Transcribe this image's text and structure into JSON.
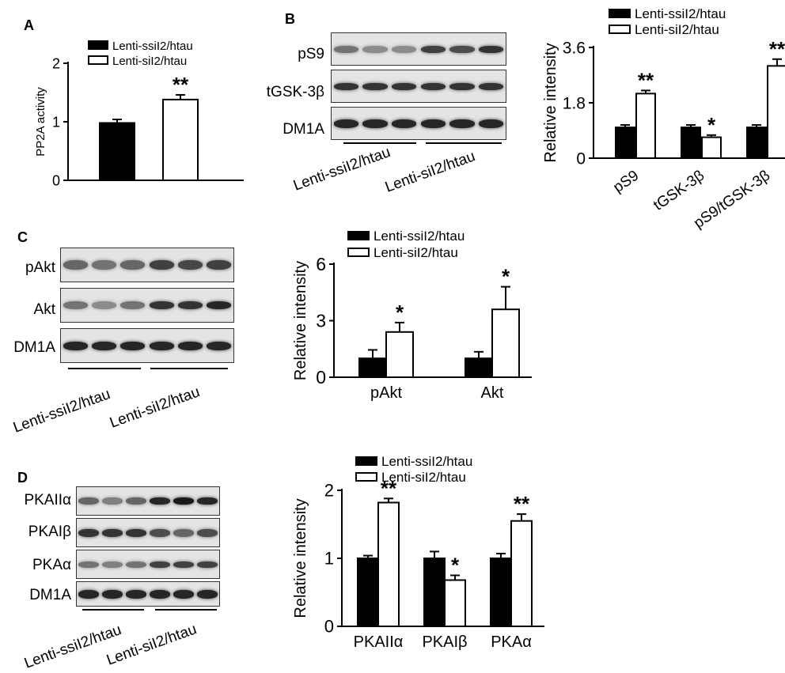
{
  "colors": {
    "series1": "#000000",
    "series2": "#ffffff",
    "axis": "#000000"
  },
  "panels": {
    "A": {
      "letter": "A",
      "chart": {
        "type": "bar",
        "ylabel": "PP2A activity",
        "categories": [
          ""
        ],
        "ylim": [
          0,
          2
        ],
        "yticks": [
          "0",
          "1",
          "2"
        ],
        "legend": [
          "Lenti-ssiI2/htau",
          "Lenti-siI2/htau"
        ],
        "series": [
          {
            "name": "Lenti-ssiI2/htau",
            "values": [
              0.98
            ],
            "errors": [
              0.06
            ],
            "sig": [
              ""
            ]
          },
          {
            "name": "Lenti-siI2/htau",
            "values": [
              1.38
            ],
            "errors": [
              0.08
            ],
            "sig": [
              "**"
            ]
          }
        ]
      }
    },
    "B": {
      "letter": "B",
      "blots": [
        "pS9",
        "tGSK-3β",
        "DM1A"
      ],
      "groups": [
        "Lenti-ssiI2/htau",
        "Lenti-siI2/htau"
      ],
      "chart": {
        "type": "bar",
        "ylabel": "Relative intensity",
        "categories": [
          "pS9",
          "tGSK-3β",
          "pS9/tGSK-3β"
        ],
        "ylim": [
          0,
          3.6
        ],
        "yticks": [
          "0",
          "1.8",
          "3.6"
        ],
        "legend": [
          "Lenti-ssiI2/htau",
          "Lenti-siI2/htau"
        ],
        "series": [
          {
            "name": "Lenti-ssiI2/htau",
            "values": [
              1.0,
              1.0,
              1.0
            ],
            "errors": [
              0.08,
              0.08,
              0.08
            ],
            "sig": [
              "",
              "",
              ""
            ]
          },
          {
            "name": "Lenti-siI2/htau",
            "values": [
              2.1,
              0.68,
              3.0
            ],
            "errors": [
              0.1,
              0.07,
              0.22
            ],
            "sig": [
              "**",
              "*",
              "**"
            ]
          }
        ]
      }
    },
    "C": {
      "letter": "C",
      "blots": [
        "pAkt",
        "Akt",
        "DM1A"
      ],
      "groups": [
        "Lenti-ssiI2/htau",
        "Lenti-siI2/htau"
      ],
      "chart": {
        "type": "bar",
        "ylabel": "Relative intensity",
        "categories": [
          "pAkt",
          "Akt"
        ],
        "ylim": [
          0,
          6
        ],
        "yticks": [
          "0",
          "3",
          "6"
        ],
        "legend": [
          "Lenti-ssiI2/htau",
          "Lenti-siI2/htau"
        ],
        "series": [
          {
            "name": "Lenti-ssiI2/htau",
            "values": [
              1.0,
              1.0
            ],
            "errors": [
              0.45,
              0.35
            ],
            "sig": [
              "",
              ""
            ]
          },
          {
            "name": "Lenti-siI2/htau",
            "values": [
              2.4,
              3.6
            ],
            "errors": [
              0.5,
              1.2
            ],
            "sig": [
              "*",
              "*"
            ]
          }
        ]
      }
    },
    "D": {
      "letter": "D",
      "blots": [
        "PKAIIα",
        "PKAIβ",
        "PKAα",
        "DM1A"
      ],
      "groups": [
        "Lenti-ssiI2/htau",
        "Lenti-siI2/htau"
      ],
      "chart": {
        "type": "bar",
        "ylabel": "Relative intensity",
        "categories": [
          "PKAIIα",
          "PKAIβ",
          "PKAα"
        ],
        "ylim": [
          0,
          2
        ],
        "yticks": [
          "0",
          "1",
          "2"
        ],
        "legend": [
          "Lenti-ssiI2/htau",
          "Lenti-siI2/htau"
        ],
        "series": [
          {
            "name": "Lenti-ssiI2/htau",
            "values": [
              1.0,
              1.0,
              1.0
            ],
            "errors": [
              0.04,
              0.1,
              0.07
            ],
            "sig": [
              "",
              "",
              ""
            ]
          },
          {
            "name": "Lenti-siI2/htau",
            "values": [
              1.82,
              0.68,
              1.55
            ],
            "errors": [
              0.06,
              0.07,
              0.1
            ],
            "sig": [
              "**",
              "*",
              "**"
            ]
          }
        ]
      }
    }
  },
  "chart_data": [
    {
      "type": "bar",
      "ylabel": "PP2A activity",
      "ylim": [
        0,
        2
      ],
      "categories": [
        ""
      ],
      "series": [
        {
          "name": "Lenti-ssiI2/htau",
          "values": [
            0.98
          ]
        },
        {
          "name": "Lenti-siI2/htau",
          "values": [
            1.38
          ]
        }
      ]
    },
    {
      "type": "bar",
      "ylabel": "Relative intensity",
      "ylim": [
        0,
        3.6
      ],
      "categories": [
        "pS9",
        "tGSK-3β",
        "pS9/tGSK-3β"
      ],
      "series": [
        {
          "name": "Lenti-ssiI2/htau",
          "values": [
            1.0,
            1.0,
            1.0
          ]
        },
        {
          "name": "Lenti-siI2/htau",
          "values": [
            2.1,
            0.68,
            3.0
          ]
        }
      ]
    },
    {
      "type": "bar",
      "ylabel": "Relative intensity",
      "ylim": [
        0,
        6
      ],
      "categories": [
        "pAkt",
        "Akt"
      ],
      "series": [
        {
          "name": "Lenti-ssiI2/htau",
          "values": [
            1.0,
            1.0
          ]
        },
        {
          "name": "Lenti-siI2/htau",
          "values": [
            2.4,
            3.6
          ]
        }
      ]
    },
    {
      "type": "bar",
      "ylabel": "Relative intensity",
      "ylim": [
        0,
        2
      ],
      "categories": [
        "PKAIIα",
        "PKAIβ",
        "PKAα"
      ],
      "series": [
        {
          "name": "Lenti-ssiI2/htau",
          "values": [
            1.0,
            1.0,
            1.0
          ]
        },
        {
          "name": "Lenti-siI2/htau",
          "values": [
            1.82,
            0.68,
            1.55
          ]
        }
      ]
    }
  ]
}
